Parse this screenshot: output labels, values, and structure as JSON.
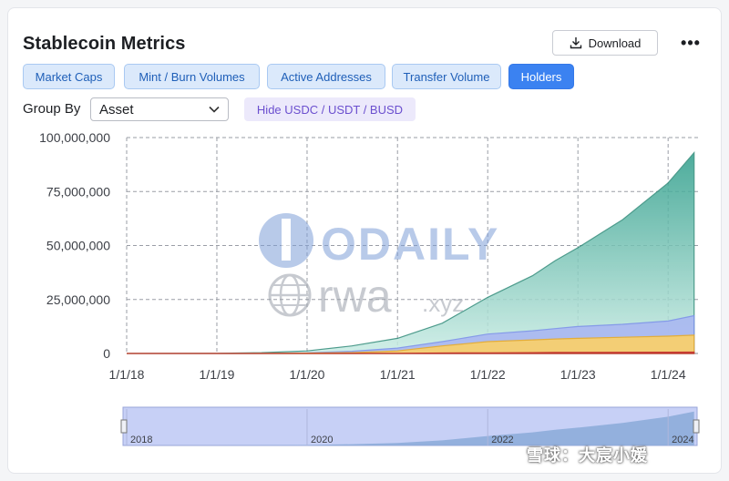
{
  "header": {
    "title": "Stablecoin Metrics",
    "download_label": "Download",
    "more_label": "•••"
  },
  "tabs": [
    {
      "label": "Market Caps",
      "active": false
    },
    {
      "label": "Mint / Burn Volumes",
      "active": false
    },
    {
      "label": "Active Addresses",
      "active": false
    },
    {
      "label": "Transfer Volume",
      "active": false
    },
    {
      "label": "Holders",
      "active": true
    }
  ],
  "controls": {
    "group_by_label": "Group By",
    "group_by_value": "Asset",
    "hide_button_label": "Hide USDC / USDT / BUSD"
  },
  "brand": {
    "logo_text": "ODAILY",
    "rwa_text": "rwa",
    "rwa_suffix": ".xyz",
    "watermark_text": "雪球：大宸小媛"
  },
  "colors": {
    "accent": "#3b82f1",
    "total_holders": "#2f9e8b",
    "series_blue": "#9aa8f0",
    "series_yellow": "#f5c25a",
    "series_red": "#e0493d"
  },
  "chart_data": {
    "type": "area",
    "title": "",
    "xlabel": "",
    "ylabel": "",
    "y_ticks": [
      "100,000,000",
      "75,000,000",
      "50,000,000",
      "25,000,000",
      "0"
    ],
    "x_ticks": [
      "1/1/18",
      "1/1/19",
      "1/1/20",
      "1/1/21",
      "1/1/22",
      "1/1/23",
      "1/1/24"
    ],
    "ylim": [
      0,
      100000000
    ],
    "grid": true,
    "x": [
      "2018-01-01",
      "2019-01-01",
      "2019-07-01",
      "2020-01-01",
      "2020-07-01",
      "2021-01-01",
      "2021-07-01",
      "2022-01-01",
      "2022-07-01",
      "2022-10-01",
      "2023-01-01",
      "2023-07-01",
      "2024-01-01",
      "2024-04-15"
    ],
    "series": [
      {
        "values": [
          0,
          100000,
          400000,
          1200000,
          3500000,
          7000000,
          14000000,
          26000000,
          36000000,
          43000000,
          49000000,
          62000000,
          79000000,
          93000000
        ]
      },
      {
        "values": [
          0,
          0,
          100000,
          300000,
          1000000,
          2500000,
          5500000,
          9000000,
          10500000,
          11500000,
          12500000,
          13500000,
          15000000,
          17500000
        ]
      },
      {
        "values": [
          0,
          0,
          50000,
          150000,
          400000,
          1200000,
          3500000,
          5500000,
          6300000,
          6700000,
          7000000,
          7500000,
          8000000,
          8500000
        ]
      },
      {
        "values": [
          0,
          0,
          0,
          0,
          50000,
          100000,
          200000,
          300000,
          400000,
          450000,
          500000,
          550000,
          600000,
          650000
        ]
      }
    ],
    "navigator": {
      "labels": [
        "2018",
        "2020",
        "2022",
        "2024"
      ]
    }
  }
}
